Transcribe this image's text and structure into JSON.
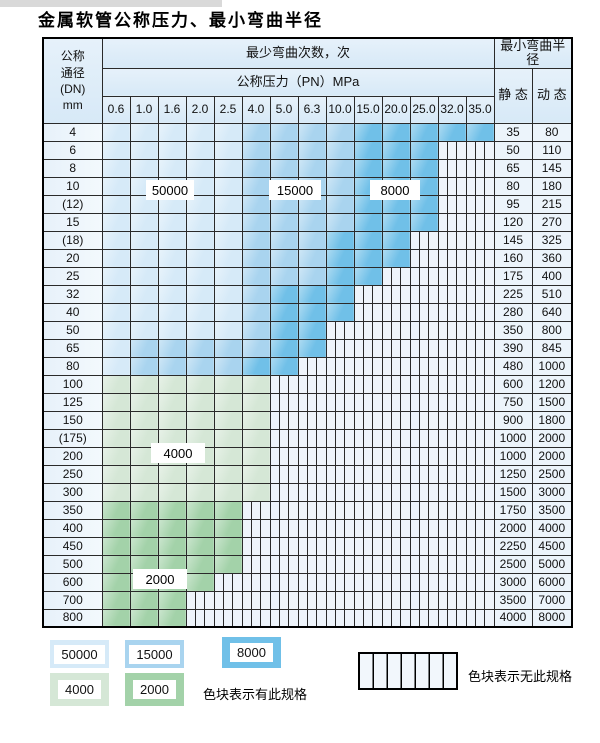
{
  "title": "金属软管公称压力、最小弯曲半径",
  "table": {
    "corner_header": "公称\n通径\n(DN)\nmm",
    "span_header": "最少弯曲次数，次",
    "pressure_header": "公称压力（PN）MPa",
    "radius_header": "最小弯曲半径",
    "static_header": "静 态",
    "dynamic_header": "动 态",
    "pn_values": [
      "0.6",
      "1.0",
      "1.6",
      "2.0",
      "2.5",
      "4.0",
      "5.0",
      "6.3",
      "10.0",
      "15.0",
      "20.0",
      "25.0",
      "32.0",
      "35.0"
    ],
    "shade_key": {
      "L": "cycles-50000",
      "M": "cycles-15000",
      "D": "cycles-8000",
      "G": "cycles-4000",
      "g": "cycles-2000",
      "X": "no-spec-hatch"
    },
    "rows": [
      {
        "dn": "4",
        "shades": "LLLLLMMMMDDDDD",
        "static": "35",
        "dynamic": "80"
      },
      {
        "dn": "6",
        "shades": "LLLLLMMMMDDDXX",
        "static": "50",
        "dynamic": "110"
      },
      {
        "dn": "8",
        "shades": "LLLLLMMMMDDDXX",
        "static": "65",
        "dynamic": "145"
      },
      {
        "dn": "10",
        "shades": "LLLLLMMMMDDDXX",
        "static": "80",
        "dynamic": "180"
      },
      {
        "dn": "(12)",
        "shades": "LLLLLMMMMDDDXX",
        "static": "95",
        "dynamic": "215"
      },
      {
        "dn": "15",
        "shades": "LLLLLMMMMDDDXX",
        "static": "120",
        "dynamic": "270"
      },
      {
        "dn": "(18)",
        "shades": "LLLLLMMMDDDXXX",
        "static": "145",
        "dynamic": "325"
      },
      {
        "dn": "20",
        "shades": "LLLLLMMMDDDXXX",
        "static": "160",
        "dynamic": "360"
      },
      {
        "dn": "25",
        "shades": "LLLLLMMMDDXXXX",
        "static": "175",
        "dynamic": "400"
      },
      {
        "dn": "32",
        "shades": "LLLLLMDDDXXXXX",
        "static": "225",
        "dynamic": "510"
      },
      {
        "dn": "40",
        "shades": "LLLLLMDDDXXXXX",
        "static": "280",
        "dynamic": "640"
      },
      {
        "dn": "50",
        "shades": "LLLLLMDDXXXXXX",
        "static": "350",
        "dynamic": "800"
      },
      {
        "dn": "65",
        "shades": "LMMMMMDDXXXXXX",
        "static": "390",
        "dynamic": "845"
      },
      {
        "dn": "80",
        "shades": "LMMMMDDXXXXXXX",
        "static": "480",
        "dynamic": "1000"
      },
      {
        "dn": "100",
        "shades": "GGGGGGXXXXXXXX",
        "static": "600",
        "dynamic": "1200"
      },
      {
        "dn": "125",
        "shades": "GGGGGGXXXXXXXX",
        "static": "750",
        "dynamic": "1500"
      },
      {
        "dn": "150",
        "shades": "GGGGGGXXXXXXXX",
        "static": "900",
        "dynamic": "1800"
      },
      {
        "dn": "(175)",
        "shades": "GGGGGGXXXXXXXX",
        "static": "1000",
        "dynamic": "2000"
      },
      {
        "dn": "200",
        "shades": "GGGGGGXXXXXXXX",
        "static": "1000",
        "dynamic": "2000"
      },
      {
        "dn": "250",
        "shades": "GGGGGGXXXXXXXX",
        "static": "1250",
        "dynamic": "2500"
      },
      {
        "dn": "300",
        "shades": "GGGGGGXXXXXXXX",
        "static": "1500",
        "dynamic": "3000"
      },
      {
        "dn": "350",
        "shades": "gggggXXXXXXXXX",
        "static": "1750",
        "dynamic": "3500"
      },
      {
        "dn": "400",
        "shades": "gggggXXXXXXXXX",
        "static": "2000",
        "dynamic": "4000"
      },
      {
        "dn": "450",
        "shades": "gggggXXXXXXXXX",
        "static": "2250",
        "dynamic": "4500"
      },
      {
        "dn": "500",
        "shades": "gggggXXXXXXXXX",
        "static": "2500",
        "dynamic": "5000"
      },
      {
        "dn": "600",
        "shades": "ggggXXXXXXXXXX",
        "static": "3000",
        "dynamic": "6000"
      },
      {
        "dn": "700",
        "shades": "gggXXXXXXXXXXX",
        "static": "3500",
        "dynamic": "7000"
      },
      {
        "dn": "800",
        "shades": "gggXXXXXXXXXXX",
        "static": "4000",
        "dynamic": "8000"
      }
    ]
  },
  "overlays": [
    {
      "label": "50000"
    },
    {
      "label": "15000"
    },
    {
      "label": "8000"
    },
    {
      "label": "4000"
    },
    {
      "label": "2000"
    }
  ],
  "legend": {
    "swatches": [
      {
        "label": "50000",
        "shade": "cycles-50000"
      },
      {
        "label": "15000",
        "shade": "cycles-15000"
      },
      {
        "label": "8000",
        "shade": "cycles-8000"
      },
      {
        "label": "4000",
        "shade": "cycles-4000"
      },
      {
        "label": "2000",
        "shade": "cycles-2000"
      }
    ],
    "has_spec_text": "色块表示有此规格",
    "no_spec_text": "色块表示无此规格"
  },
  "colors": {
    "cycles_50000": "#d6eaf8",
    "cycles_15000": "#a9d4ef",
    "cycles_8000": "#70c0e8",
    "cycles_4000": "#d5e7d6",
    "cycles_2000": "#a3d2a9",
    "hatch_background": "#eef4fb",
    "grid_line": "#2a2a2a",
    "header_background": "#dcecf8"
  }
}
